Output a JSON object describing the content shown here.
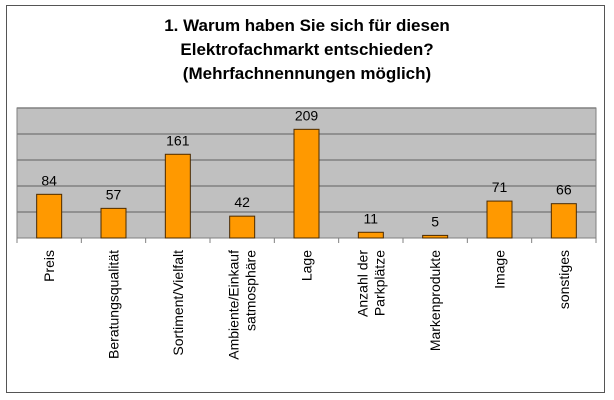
{
  "chart_data": {
    "type": "bar",
    "title_lines": [
      "1. Warum haben Sie sich für diesen",
      "Elektrofachmarkt entschieden?",
      "(Mehrfachnennungen möglich)"
    ],
    "categories": [
      [
        "Preis"
      ],
      [
        "Beratungsqualität"
      ],
      [
        "Sortiment/Vielfalt"
      ],
      [
        "Ambiente/Einkauf",
        "satmosphäre"
      ],
      [
        "Lage"
      ],
      [
        "Anzahl der",
        "Parkplätze"
      ],
      [
        "Markenprodukte"
      ],
      [
        "Image"
      ],
      [
        "sonstiges"
      ]
    ],
    "values": [
      84,
      57,
      161,
      42,
      209,
      11,
      5,
      71,
      66
    ],
    "data_labels": [
      "84",
      "57",
      "161",
      "42",
      "209",
      "11",
      "5",
      "71",
      "66"
    ],
    "xlabel": "",
    "ylabel": "",
    "ylim": [
      0,
      250
    ],
    "ygrid_step": 50,
    "grid": true,
    "y_tick_labels_shown": false,
    "colors": {
      "bar": "#FF9900",
      "bar_edge": "#4a2a00",
      "plot_bg": "#C0C0C0",
      "grid": "#808080"
    }
  }
}
